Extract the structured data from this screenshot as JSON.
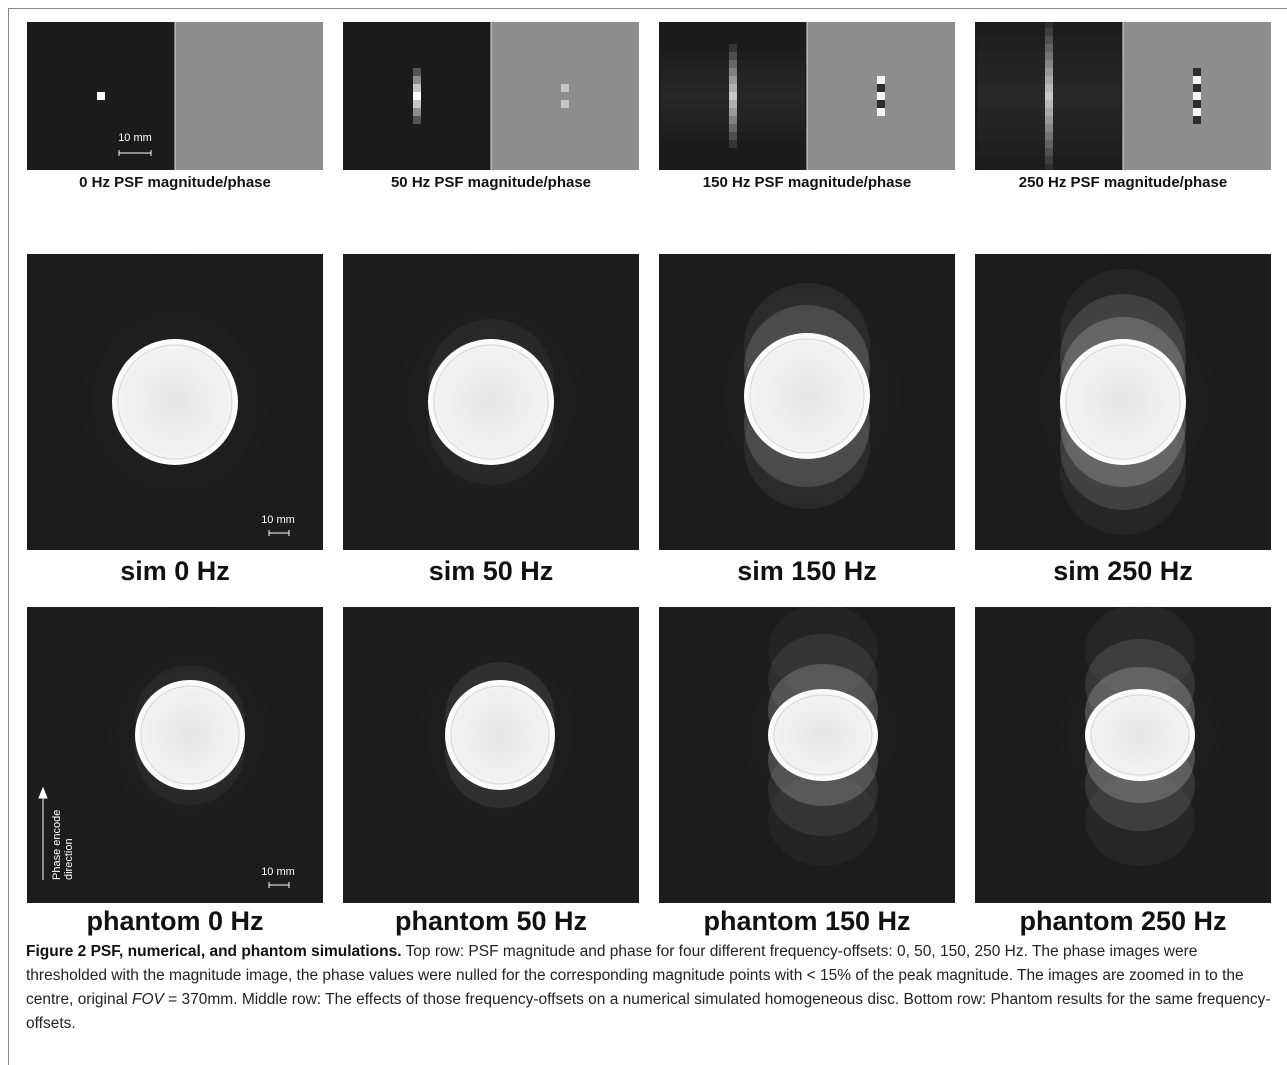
{
  "top_row": {
    "labels": [
      "0 Hz PSF magnitude/phase",
      "50 Hz PSF magnitude/phase",
      "150 Hz PSF magnitude/phase",
      "250 Hz PSF magnitude/phase"
    ],
    "scale_bar": "10 mm"
  },
  "middle_row": {
    "labels": [
      "sim 0 Hz",
      "sim 50 Hz",
      "sim 150 Hz",
      "sim 250 Hz"
    ],
    "scale_bar": "10 mm"
  },
  "bottom_row": {
    "labels": [
      "phantom 0 Hz",
      "phantom 50 Hz",
      "phantom 150 Hz",
      "phantom 250 Hz"
    ],
    "scale_bar": "10 mm",
    "direction_label": [
      "Phase encode",
      "direction"
    ]
  },
  "caption": {
    "title": "Figure 2 PSF, numerical, and phantom simulations.",
    "text_before_fov": "Top row: PSF magnitude and phase for four different frequency-offsets: 0, 50, 150, 250 Hz. The phase images were thresholded with the magnitude image, the phase values were nulled for the corresponding magnitude points with < 15% of the peak magnitude. The images are zoomed in to the centre, original",
    "fov": "FOV",
    "text_after_fov": "= 370mm. Middle row: The effects of those frequency-offsets on a numerical simulated homogeneous disc. Bottom row: Phantom results for the same frequency-offsets."
  }
}
